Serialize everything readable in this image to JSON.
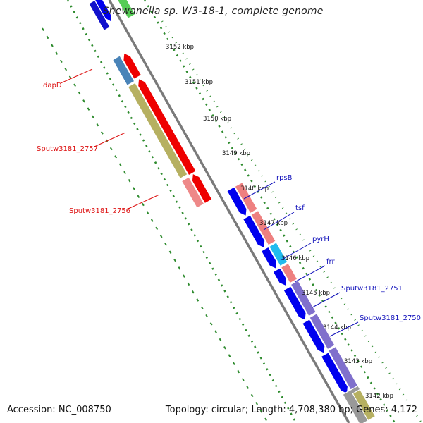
{
  "title": "Shewanella sp. W3-18-1, complete genome",
  "footer": {
    "accession": "Accession: NC_008750",
    "summary": "Topology: circular; Length: 4,708,380 bp; Genes: 4,172"
  },
  "ticks": [
    "3152 kbp",
    "3151 kbp",
    "3150 kbp",
    "3149 kbp",
    "3148 kbp",
    "3147 kbp",
    "3146 kbp",
    "3145 kbp",
    "3144 kbp",
    "3143 kbp",
    "3142 kbp"
  ],
  "genes": [
    {
      "label": "dapD",
      "strand": "reverse",
      "color": "#dd1111"
    },
    {
      "label": "Sputw3181_2757",
      "strand": "reverse",
      "color": "#dd1111"
    },
    {
      "label": "Sputw3181_2756",
      "strand": "reverse",
      "color": "#dd1111"
    },
    {
      "label": "rpsB",
      "strand": "forward",
      "color": "#1111bb"
    },
    {
      "label": "tsf",
      "strand": "forward",
      "color": "#1111bb"
    },
    {
      "label": "pyrH",
      "strand": "forward",
      "color": "#1111bb"
    },
    {
      "label": "frr",
      "strand": "forward",
      "color": "#1111bb"
    },
    {
      "label": "Sputw3181_2751",
      "strand": "forward",
      "color": "#1111bb"
    },
    {
      "label": "Sputw3181_2750",
      "strand": "forward",
      "color": "#1111bb"
    }
  ],
  "colors": {
    "backbone": "#7a7a7a",
    "forward_cds": "#0000ee",
    "reverse_cds": "#ee0000",
    "gc_skew_dots": "#2e8b2e"
  }
}
